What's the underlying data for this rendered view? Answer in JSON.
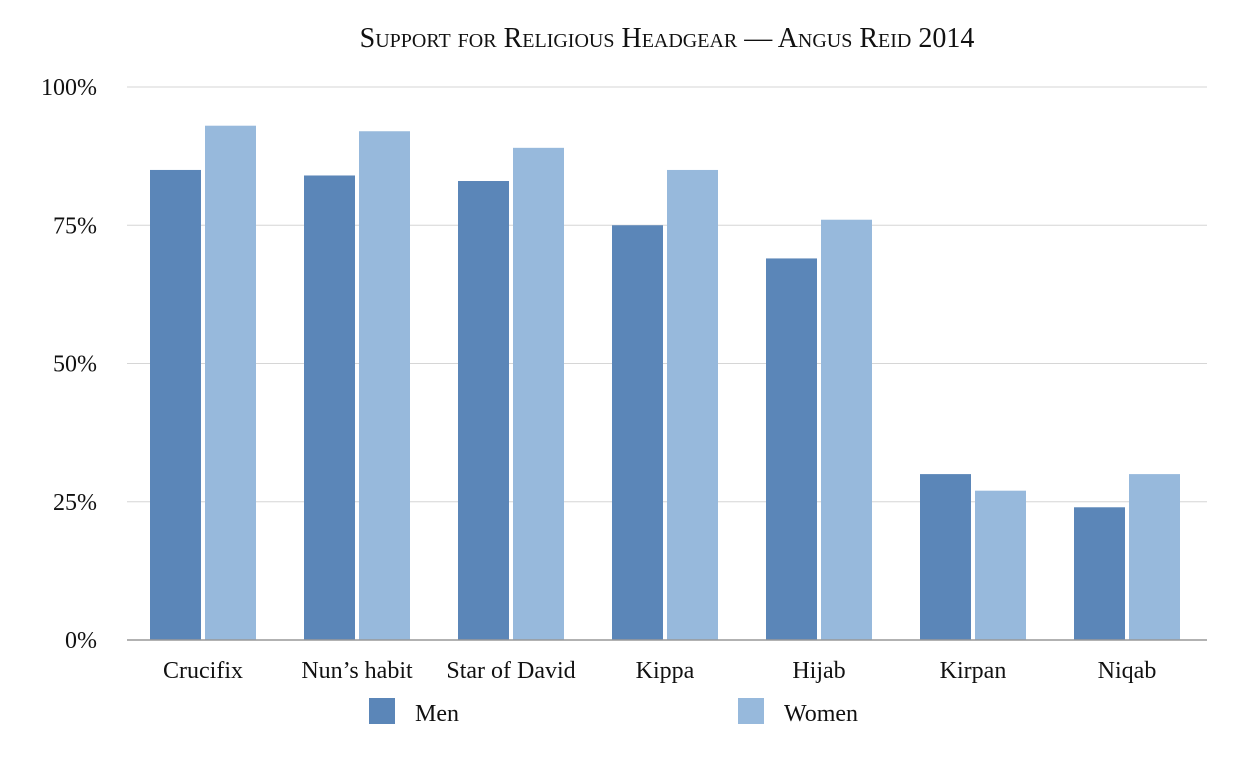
{
  "chart_data": {
    "type": "bar",
    "title": "Support for Religious Headgear — Angus Reid 2014",
    "xlabel": "",
    "ylabel": "",
    "categories": [
      "Crucifix",
      "Nun’s habit",
      "Star of David",
      "Kippa",
      "Hijab",
      "Kirpan",
      "Niqab"
    ],
    "series": [
      {
        "name": "Men",
        "color": "#5b86b8",
        "values": [
          85,
          84,
          83,
          75,
          69,
          30,
          24
        ]
      },
      {
        "name": "Women",
        "color": "#97b9dc",
        "values": [
          93,
          92,
          89,
          85,
          76,
          27,
          30
        ]
      }
    ],
    "ylim": [
      0,
      100
    ],
    "yticks": [
      0,
      25,
      50,
      75,
      100
    ],
    "ytick_labels": [
      "0%",
      "25%",
      "50%",
      "75%",
      "100%"
    ],
    "grid": true,
    "legend_position": "bottom"
  }
}
